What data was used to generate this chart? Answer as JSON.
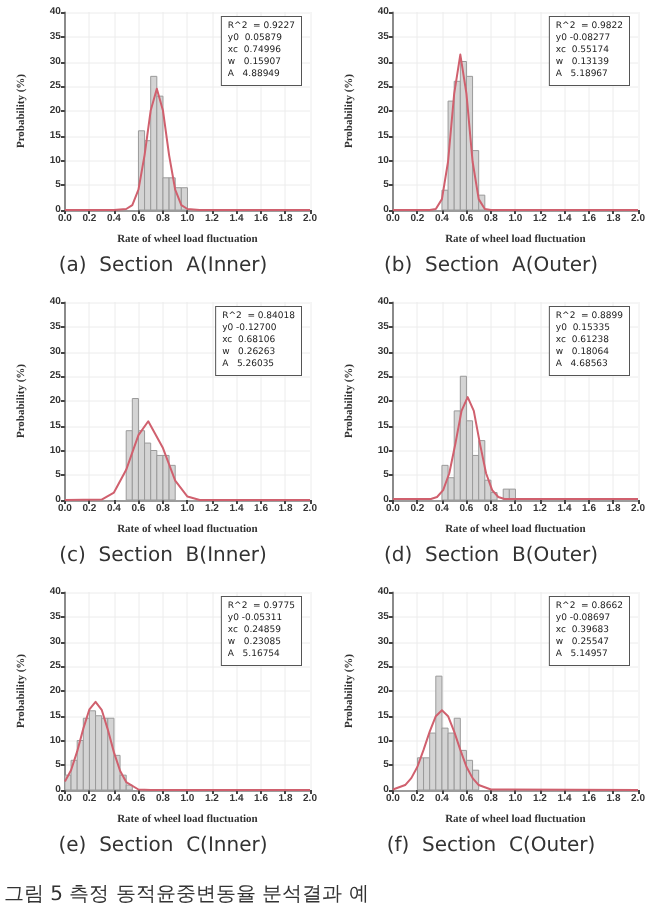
{
  "chart_data": [
    {
      "type": "histogram",
      "title": "(a)  Section  A(Inner)",
      "xlabel": "Rate of wheel load fluctuation",
      "ylabel": "Probability (%)",
      "xlim": [
        0,
        2
      ],
      "ylim": [
        0,
        40
      ],
      "xticks": [
        {
          "value": 0,
          "label": "0.0"
        },
        {
          "value": 0.2,
          "label": "0.2"
        },
        {
          "value": 0.4,
          "label": "0.4"
        },
        {
          "value": 0.6,
          "label": "0.6"
        },
        {
          "value": 0.8,
          "label": "0.8"
        },
        {
          "value": 1,
          "label": "1.0"
        },
        {
          "value": 1.2,
          "label": "1.2"
        },
        {
          "value": 1.4,
          "label": "1.4"
        },
        {
          "value": 1.6,
          "label": "1.6"
        },
        {
          "value": 1.8,
          "label": "1.8"
        },
        {
          "value": 2,
          "label": "2.0"
        }
      ],
      "yticks": [
        0,
        5,
        10,
        15,
        20,
        25,
        30,
        35,
        40
      ],
      "grid": true,
      "series": [
        {
          "color": "#d4d4d4",
          "bins": [
            0.6,
            0.65,
            0.7,
            0.75,
            0.8,
            0.85,
            0.9,
            0.95,
            1.0
          ],
          "values": [
            16,
            14,
            27,
            23,
            6.5,
            6.5,
            4.5,
            4.5
          ]
        },
        {
          "type": "line",
          "color": "#d0606e",
          "x": [
            0,
            0.4,
            0.5,
            0.55,
            0.6,
            0.65,
            0.7,
            0.75,
            0.8,
            0.85,
            0.9,
            0.95,
            1.0,
            1.1,
            2.0
          ],
          "values": [
            0,
            0,
            0.2,
            1.0,
            4.1,
            11.1,
            20.1,
            24.5,
            20.1,
            11.1,
            4.1,
            1.0,
            0.2,
            0,
            0
          ]
        }
      ],
      "annotations": [
        "R^2  = 0.9227\ny0  0.05879\nxc  0.74996\nw   0.15907\nA   4.88949"
      ]
    },
    {
      "type": "histogram",
      "title": "(b)  Section  A(Outer)",
      "xlabel": "Rate of wheel load fluctuation",
      "ylabel": "Probability (%)",
      "xlim": [
        0,
        2
      ],
      "ylim": [
        0,
        40
      ],
      "xticks": [
        {
          "value": 0,
          "label": "0.0"
        },
        {
          "value": 0.2,
          "label": "0.2"
        },
        {
          "value": 0.4,
          "label": "0.4"
        },
        {
          "value": 0.6,
          "label": "0.6"
        },
        {
          "value": 0.8,
          "label": "0.8"
        },
        {
          "value": 1,
          "label": "1.0"
        },
        {
          "value": 1.2,
          "label": "1.2"
        },
        {
          "value": 1.4,
          "label": "1.4"
        },
        {
          "value": 1.6,
          "label": "1.6"
        },
        {
          "value": 1.8,
          "label": "1.8"
        },
        {
          "value": 2,
          "label": "2.0"
        }
      ],
      "yticks": [
        0,
        5,
        10,
        15,
        20,
        25,
        30,
        35,
        40
      ],
      "grid": true,
      "series": [
        {
          "color": "#d4d4d4",
          "bins": [
            0.4,
            0.45,
            0.5,
            0.55,
            0.6,
            0.65,
            0.7,
            0.75
          ],
          "values": [
            4,
            22,
            26,
            30,
            27,
            12,
            3
          ]
        },
        {
          "type": "line",
          "color": "#d0606e",
          "x": [
            0,
            0.3,
            0.35,
            0.4,
            0.45,
            0.5,
            0.55,
            0.6,
            0.65,
            0.7,
            0.75,
            0.8,
            2.0
          ],
          "values": [
            0,
            0,
            0.2,
            2.2,
            9.8,
            23.5,
            31.4,
            23.5,
            9.8,
            2.2,
            0.2,
            0,
            0
          ]
        }
      ],
      "annotations": [
        "R^2  = 0.9822\ny0 -0.08277\nxc  0.55174\nw   0.13139\nA   5.18967"
      ]
    },
    {
      "type": "histogram",
      "title": "(c)  Section  B(Inner)",
      "xlabel": "Rate of wheel load fluctuation",
      "ylabel": "Probability (%)",
      "xlim": [
        0,
        2
      ],
      "ylim": [
        0,
        40
      ],
      "xticks": [
        {
          "value": 0,
          "label": "0.0"
        },
        {
          "value": 0.2,
          "label": "0.2"
        },
        {
          "value": 0.4,
          "label": "0.4"
        },
        {
          "value": 0.6,
          "label": "0.6"
        },
        {
          "value": 0.8,
          "label": "0.8"
        },
        {
          "value": 1,
          "label": "1.0"
        },
        {
          "value": 1.2,
          "label": "1.2"
        },
        {
          "value": 1.4,
          "label": "1.4"
        },
        {
          "value": 1.6,
          "label": "1.6"
        },
        {
          "value": 1.8,
          "label": "1.8"
        },
        {
          "value": 2,
          "label": "2.0"
        }
      ],
      "yticks": [
        0,
        5,
        10,
        15,
        20,
        25,
        30,
        35,
        40
      ],
      "grid": true,
      "series": [
        {
          "color": "#d4d4d4",
          "bins": [
            0.5,
            0.55,
            0.6,
            0.65,
            0.7,
            0.75,
            0.8,
            0.85,
            0.9
          ],
          "values": [
            14,
            20.5,
            14,
            11.5,
            10,
            9,
            9,
            7
          ]
        },
        {
          "type": "line",
          "color": "#d0606e",
          "x": [
            0,
            0.3,
            0.4,
            0.5,
            0.6,
            0.68,
            0.8,
            0.9,
            1.0,
            1.1,
            2.0
          ],
          "values": [
            0,
            0.1,
            1.5,
            6.1,
            13.1,
            15.9,
            10.5,
            3.9,
            0.7,
            0,
            0
          ]
        }
      ],
      "annotations": [
        "R^2  = 0.84018\ny0 -0.12700\nxc  0.68106\nw   0.26263\nA   5.26035"
      ]
    },
    {
      "type": "histogram",
      "title": "(d)  Section  B(Outer)",
      "xlabel": "Rate of wheel load fluctuation",
      "ylabel": "Probability (%)",
      "xlim": [
        0,
        2
      ],
      "ylim": [
        0,
        40
      ],
      "xticks": [
        {
          "value": 0,
          "label": "0.0"
        },
        {
          "value": 0.2,
          "label": "0.2"
        },
        {
          "value": 0.4,
          "label": "0.4"
        },
        {
          "value": 0.6,
          "label": "0.6"
        },
        {
          "value": 0.8,
          "label": "0.8"
        },
        {
          "value": 1,
          "label": "1.0"
        },
        {
          "value": 1.2,
          "label": "1.2"
        },
        {
          "value": 1.4,
          "label": "1.4"
        },
        {
          "value": 1.6,
          "label": "1.6"
        },
        {
          "value": 1.8,
          "label": "1.8"
        },
        {
          "value": 2,
          "label": "2.0"
        }
      ],
      "yticks": [
        0,
        5,
        10,
        15,
        20,
        25,
        30,
        35,
        40
      ],
      "grid": true,
      "series": [
        {
          "color": "#d4d4d4",
          "bins": [
            0.4,
            0.45,
            0.5,
            0.55,
            0.6,
            0.65,
            0.7,
            0.75,
            0.8,
            0.85,
            0.9,
            0.95,
            1.0
          ],
          "values": [
            7,
            4.5,
            18,
            25,
            16,
            9,
            12,
            4,
            1.5,
            0,
            2.2,
            2.2
          ]
        },
        {
          "type": "line",
          "color": "#d0606e",
          "x": [
            0,
            0.31,
            0.36,
            0.41,
            0.46,
            0.51,
            0.56,
            0.61,
            0.66,
            0.71,
            0.76,
            0.81,
            0.86,
            0.91,
            2.0
          ],
          "values": [
            0.2,
            0.2,
            0.6,
            2.0,
            5.4,
            11.4,
            18,
            20.8,
            18,
            11.4,
            5.4,
            2.0,
            0.6,
            0.2,
            0.2
          ]
        }
      ],
      "annotations": [
        "R^2  = 0.8899\ny0  0.15335\nxc  0.61238\nw   0.18064\nA   4.68563"
      ]
    },
    {
      "type": "histogram",
      "title": "(e)  Section  C(Inner)",
      "xlabel": "Rate of wheel load fluctuation",
      "ylabel": "Probability (%)",
      "xlim": [
        0,
        2
      ],
      "ylim": [
        0,
        40
      ],
      "xticks": [
        {
          "value": 0,
          "label": "0.0"
        },
        {
          "value": 0.2,
          "label": "0.2"
        },
        {
          "value": 0.4,
          "label": "0.4"
        },
        {
          "value": 0.6,
          "label": "0.6"
        },
        {
          "value": 0.8,
          "label": "0.8"
        },
        {
          "value": 1,
          "label": "1.0"
        },
        {
          "value": 1.2,
          "label": "1.2"
        },
        {
          "value": 1.4,
          "label": "1.4"
        },
        {
          "value": 1.6,
          "label": "1.6"
        },
        {
          "value": 1.8,
          "label": "1.8"
        },
        {
          "value": 2,
          "label": "2.0"
        }
      ],
      "yticks": [
        0,
        5,
        10,
        15,
        20,
        25,
        30,
        35,
        40
      ],
      "grid": true,
      "series": [
        {
          "color": "#d4d4d4",
          "bins": [
            0,
            0.05,
            0.1,
            0.15,
            0.2,
            0.25,
            0.3,
            0.35,
            0.4,
            0.45,
            0.5,
            0.55
          ],
          "values": [
            3,
            6,
            10,
            14.5,
            16,
            15,
            14.5,
            14.5,
            7,
            3,
            1
          ]
        },
        {
          "type": "line",
          "color": "#d0606e",
          "x": [
            0,
            0.05,
            0.1,
            0.15,
            0.2,
            0.25,
            0.3,
            0.35,
            0.4,
            0.45,
            0.5,
            0.6,
            0.7,
            2.0
          ],
          "values": [
            1.7,
            4.0,
            7.8,
            12.4,
            16.3,
            17.8,
            16.2,
            12.2,
            7.6,
            3.9,
            1.6,
            0.1,
            0,
            0
          ]
        }
      ],
      "annotations": [
        "R^2  = 0.9775\ny0 -0.05311\nxc  0.24859\nw   0.23085\nA   5.16754"
      ]
    },
    {
      "type": "histogram",
      "title": "(f)  Section  C(Outer)",
      "xlabel": "Rate of wheel load fluctuation",
      "ylabel": "Probability (%)",
      "xlim": [
        0,
        2
      ],
      "ylim": [
        0,
        40
      ],
      "xticks": [
        {
          "value": 0,
          "label": "0.0"
        },
        {
          "value": 0.2,
          "label": "0.2"
        },
        {
          "value": 0.4,
          "label": "0.4"
        },
        {
          "value": 0.6,
          "label": "0.6"
        },
        {
          "value": 0.8,
          "label": "0.8"
        },
        {
          "value": 1,
          "label": "1.0"
        },
        {
          "value": 1.2,
          "label": "1.2"
        },
        {
          "value": 1.4,
          "label": "1.4"
        },
        {
          "value": 1.6,
          "label": "1.6"
        },
        {
          "value": 1.8,
          "label": "1.8"
        },
        {
          "value": 2,
          "label": "2.0"
        }
      ],
      "yticks": [
        0,
        5,
        10,
        15,
        20,
        25,
        30,
        35,
        40
      ],
      "grid": true,
      "series": [
        {
          "color": "#d4d4d4",
          "bins": [
            0.2,
            0.25,
            0.3,
            0.35,
            0.4,
            0.45,
            0.5,
            0.55,
            0.6,
            0.65,
            0.7
          ],
          "values": [
            6.5,
            6.5,
            11.5,
            23,
            12.5,
            11.5,
            14.5,
            8,
            6,
            4
          ]
        },
        {
          "type": "line",
          "color": "#d0606e",
          "x": [
            0,
            0.1,
            0.15,
            0.2,
            0.25,
            0.3,
            0.35,
            0.4,
            0.45,
            0.5,
            0.55,
            0.6,
            0.65,
            0.7,
            0.8,
            2.0
          ],
          "values": [
            0.1,
            1.0,
            2.4,
            4.7,
            8.1,
            11.8,
            14.9,
            16.1,
            14.9,
            11.8,
            8.1,
            4.7,
            2.4,
            1.0,
            0.1,
            0
          ]
        }
      ],
      "annotations": [
        "R^2  = 0.8662\ny0 -0.08697\nxc  0.39683\nw   0.25547\nA   5.14957",
        "그림 5 측정 동적윤중변동율 분석결과 예"
      ]
    }
  ]
}
